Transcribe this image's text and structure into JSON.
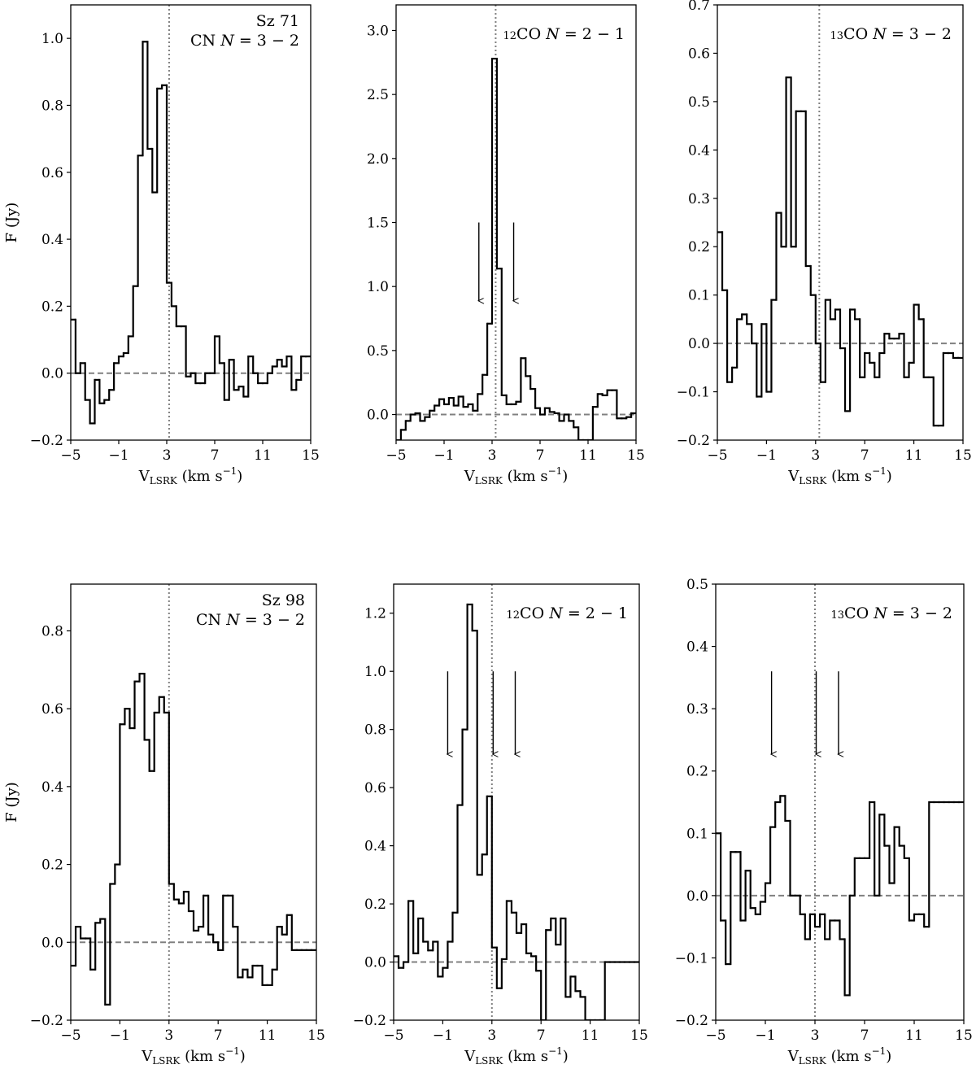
{
  "chart_data": [
    {
      "type": "line",
      "drawstyle": "steps-mid",
      "source_label": "Sz 71",
      "line_label": "CN $N=3-2$",
      "ylabel": "F (Jy)",
      "xlabel_main": "V",
      "xlabel_sub": "LSRK",
      "xlabel_units": " (km s",
      "xlabel_exp": "−1",
      "xlabel_close": ")",
      "xlim": [
        -5,
        15
      ],
      "ylim": [
        -0.2,
        1.1
      ],
      "xticks": [
        -5,
        -1,
        3,
        7,
        11,
        15
      ],
      "xtick_labels": [
        "−5",
        "−1",
        "3",
        "7",
        "11",
        "15"
      ],
      "yticks": [
        -0.2,
        0.0,
        0.2,
        0.4,
        0.6,
        0.8,
        1.0
      ],
      "ytick_labels": [
        "−0.2",
        "0.0",
        "0.2",
        "0.4",
        "0.6",
        "0.8",
        "1.0"
      ],
      "systemic_velocity": 3.2,
      "arrows": [],
      "x": [
        -4.8,
        -4.4,
        -4.0,
        -3.6,
        -3.2,
        -2.8,
        -2.4,
        -2.0,
        -1.6,
        -1.2,
        -0.8,
        -0.4,
        0.0,
        0.4,
        0.8,
        1.2,
        1.6,
        2.0,
        2.4,
        2.8,
        3.2,
        3.6,
        4.0,
        4.4,
        4.8,
        5.2,
        5.6,
        6.0,
        6.4,
        6.8,
        7.2,
        7.6,
        8.0,
        8.4,
        8.8,
        9.2,
        9.6,
        10.0,
        10.4,
        10.8,
        11.2,
        11.6,
        12.0,
        12.4,
        12.8,
        13.2,
        13.6,
        14.0,
        14.4,
        14.8
      ],
      "y": [
        0.16,
        0.0,
        0.03,
        -0.08,
        -0.15,
        -0.02,
        -0.09,
        -0.08,
        -0.05,
        0.03,
        0.05,
        0.06,
        0.11,
        0.26,
        0.65,
        0.99,
        0.67,
        0.54,
        0.85,
        0.86,
        0.27,
        0.2,
        0.14,
        0.14,
        -0.01,
        0.0,
        -0.03,
        -0.03,
        0.0,
        0.0,
        0.11,
        0.03,
        -0.08,
        0.04,
        -0.05,
        -0.04,
        -0.07,
        0.05,
        0.0,
        -0.03,
        -0.03,
        0.0,
        0.02,
        0.04,
        0.02,
        0.05,
        -0.05,
        -0.02,
        0.05,
        0.05
      ]
    },
    {
      "type": "line",
      "drawstyle": "steps-mid",
      "source_label": "",
      "line_label": "$^{12}$CO $N=2-1$",
      "ylabel": "",
      "xlabel_main": "V",
      "xlabel_sub": "LSRK",
      "xlabel_units": " (km s",
      "xlabel_exp": "−1",
      "xlabel_close": ")",
      "xlim": [
        -5,
        15
      ],
      "ylim": [
        -0.2,
        3.2
      ],
      "xticks": [
        -5,
        -1,
        3,
        7,
        11,
        15
      ],
      "xtick_labels": [
        "−5",
        "−1",
        "3",
        "7",
        "11",
        "15"
      ],
      "yticks": [
        0.0,
        0.5,
        1.0,
        1.5,
        2.0,
        2.5,
        3.0
      ],
      "ytick_labels": [
        "0.0",
        "0.5",
        "1.0",
        "1.5",
        "2.0",
        "2.5",
        "3.0"
      ],
      "systemic_velocity": 3.3,
      "arrows": [
        1.9,
        4.8
      ],
      "x": [
        -4.8,
        -4.4,
        -4.0,
        -3.6,
        -3.2,
        -2.8,
        -2.4,
        -2.0,
        -1.6,
        -1.2,
        -0.8,
        -0.4,
        0.0,
        0.4,
        0.8,
        1.2,
        1.6,
        2.0,
        2.4,
        2.8,
        3.2,
        3.6,
        4.0,
        4.4,
        4.8,
        5.2,
        5.6,
        6.0,
        6.4,
        6.8,
        7.2,
        7.6,
        8.0,
        8.4,
        8.8,
        9.2,
        9.6,
        10.0,
        10.4,
        10.8,
        11.2,
        11.6,
        12.0,
        12.4,
        12.8,
        13.2,
        13.6,
        14.0,
        14.4,
        14.8
      ],
      "y": [
        -0.2,
        -0.12,
        -0.05,
        0.0,
        0.01,
        -0.05,
        -0.02,
        0.03,
        0.07,
        0.12,
        0.08,
        0.13,
        0.07,
        0.14,
        0.06,
        0.08,
        0.03,
        0.16,
        0.31,
        0.71,
        2.78,
        1.14,
        0.15,
        0.08,
        0.08,
        0.1,
        0.44,
        0.3,
        0.2,
        0.05,
        0.0,
        0.05,
        0.02,
        0.01,
        -0.05,
        0.0,
        -0.05,
        -0.1,
        -0.2,
        -0.2,
        -0.2,
        0.06,
        0.16,
        0.15,
        0.19,
        0.19,
        -0.03,
        -0.03,
        -0.02,
        0.01
      ]
    },
    {
      "type": "line",
      "drawstyle": "steps-mid",
      "source_label": "",
      "line_label": "$^{13}$CO $N=3-2$",
      "ylabel": "",
      "xlabel_main": "V",
      "xlabel_sub": "LSRK",
      "xlabel_units": " (km s",
      "xlabel_exp": "−1",
      "xlabel_close": ")",
      "xlim": [
        -5,
        15
      ],
      "ylim": [
        -0.2,
        0.7
      ],
      "xticks": [
        -5,
        -1,
        3,
        7,
        11,
        15
      ],
      "xtick_labels": [
        "−5",
        "−1",
        "3",
        "7",
        "11",
        "15"
      ],
      "yticks": [
        -0.2,
        -0.1,
        0.0,
        0.1,
        0.2,
        0.3,
        0.4,
        0.5,
        0.6,
        0.7
      ],
      "ytick_labels": [
        "−0.2",
        "−0.1",
        "0.0",
        "0.1",
        "0.2",
        "0.3",
        "0.4",
        "0.5",
        "0.6",
        "0.7"
      ],
      "systemic_velocity": 3.3,
      "arrows": [],
      "x": [
        -4.8,
        -4.4,
        -4.0,
        -3.6,
        -3.2,
        -2.8,
        -2.4,
        -2.0,
        -1.6,
        -1.2,
        -0.8,
        -0.4,
        0.0,
        0.4,
        0.8,
        1.2,
        1.6,
        2.0,
        2.4,
        2.8,
        3.2,
        3.6,
        4.0,
        4.4,
        4.8,
        5.2,
        5.6,
        6.0,
        6.4,
        6.8,
        7.2,
        7.6,
        8.0,
        8.4,
        8.8,
        9.2,
        9.6,
        10.0,
        10.4,
        10.8,
        11.2,
        11.6,
        12.0,
        12.4,
        12.8,
        13.2,
        13.6,
        14.0,
        14.4,
        14.8
      ],
      "y": [
        0.23,
        0.11,
        -0.08,
        -0.05,
        0.05,
        0.06,
        0.04,
        0.0,
        -0.11,
        0.04,
        -0.1,
        0.09,
        0.27,
        0.2,
        0.55,
        0.2,
        0.48,
        0.48,
        0.16,
        0.1,
        0.0,
        -0.08,
        0.09,
        0.05,
        0.07,
        -0.01,
        -0.14,
        0.07,
        0.05,
        -0.07,
        -0.02,
        -0.04,
        -0.07,
        -0.02,
        0.02,
        0.01,
        0.01,
        0.02,
        -0.07,
        -0.04,
        0.08,
        0.05,
        -0.07,
        -0.07,
        -0.17,
        -0.17,
        -0.02,
        -0.02,
        -0.03,
        -0.03
      ]
    },
    {
      "type": "line",
      "drawstyle": "steps-mid",
      "source_label": "Sz 98",
      "line_label": "CN $N=3-2$",
      "ylabel": "F (Jy)",
      "xlabel_main": "V",
      "xlabel_sub": "LSRK",
      "xlabel_units": " (km s",
      "xlabel_exp": "−1",
      "xlabel_close": ")",
      "xlim": [
        -5,
        15
      ],
      "ylim": [
        -0.2,
        0.92
      ],
      "xticks": [
        -5,
        -1,
        3,
        7,
        11,
        15
      ],
      "xtick_labels": [
        "−5",
        "−1",
        "3",
        "7",
        "11",
        "15"
      ],
      "yticks": [
        -0.2,
        0.0,
        0.2,
        0.4,
        0.6,
        0.8
      ],
      "ytick_labels": [
        "−0.2",
        "0.0",
        "0.2",
        "0.4",
        "0.6",
        "0.8"
      ],
      "systemic_velocity": 3.0,
      "arrows": [],
      "x": [
        -4.8,
        -4.4,
        -4.0,
        -3.6,
        -3.2,
        -2.8,
        -2.4,
        -2.0,
        -1.6,
        -1.2,
        -0.8,
        -0.4,
        0.0,
        0.4,
        0.8,
        1.2,
        1.6,
        2.0,
        2.4,
        2.8,
        3.2,
        3.6,
        4.0,
        4.4,
        4.8,
        5.2,
        5.6,
        6.0,
        6.4,
        6.8,
        7.2,
        7.6,
        8.0,
        8.4,
        8.8,
        9.2,
        9.6,
        10.0,
        10.4,
        10.8,
        11.2,
        11.6,
        12.0,
        12.4,
        12.8,
        13.2,
        13.6,
        14.0,
        14.4,
        14.8
      ],
      "y": [
        -0.06,
        0.04,
        0.01,
        0.01,
        -0.07,
        0.05,
        0.06,
        -0.16,
        0.15,
        0.2,
        0.56,
        0.6,
        0.55,
        0.67,
        0.69,
        0.52,
        0.44,
        0.59,
        0.63,
        0.59,
        0.15,
        0.11,
        0.1,
        0.13,
        0.08,
        0.03,
        0.04,
        0.12,
        0.02,
        0.0,
        -0.02,
        0.12,
        0.12,
        0.04,
        -0.09,
        -0.07,
        -0.09,
        -0.06,
        -0.06,
        -0.11,
        -0.11,
        -0.07,
        0.04,
        0.02,
        0.07,
        -0.02,
        -0.02,
        -0.02,
        -0.02,
        -0.02
      ]
    },
    {
      "type": "line",
      "drawstyle": "steps-mid",
      "source_label": "",
      "line_label": "$^{12}$CO $N=2-1$",
      "ylabel": "",
      "xlabel_main": "V",
      "xlabel_sub": "LSRK",
      "xlabel_units": " (km s",
      "xlabel_exp": "−1",
      "xlabel_close": ")",
      "xlim": [
        -5,
        15
      ],
      "ylim": [
        -0.2,
        1.3
      ],
      "xticks": [
        -5,
        -1,
        3,
        7,
        11,
        15
      ],
      "xtick_labels": [
        "−5",
        "−1",
        "3",
        "7",
        "11",
        "15"
      ],
      "yticks": [
        -0.2,
        0.0,
        0.2,
        0.4,
        0.6,
        0.8,
        1.0,
        1.2
      ],
      "ytick_labels": [
        "−0.2",
        "0.0",
        "0.2",
        "0.4",
        "0.6",
        "0.8",
        "1.0",
        "1.2"
      ],
      "systemic_velocity": 3.0,
      "arrows": [
        -0.6,
        3.1,
        4.9
      ],
      "x": [
        -4.8,
        -4.4,
        -4.0,
        -3.6,
        -3.2,
        -2.8,
        -2.4,
        -2.0,
        -1.6,
        -1.2,
        -0.8,
        -0.4,
        0.0,
        0.4,
        0.8,
        1.2,
        1.6,
        2.0,
        2.4,
        2.8,
        3.2,
        3.6,
        4.0,
        4.4,
        4.8,
        5.2,
        5.6,
        6.0,
        6.4,
        6.8,
        7.2,
        7.6,
        8.0,
        8.4,
        8.8,
        9.2,
        9.6,
        10.0,
        10.4,
        10.8,
        11.2,
        11.6,
        12.0,
        12.4,
        12.8,
        13.2,
        13.6,
        14.0,
        14.4,
        14.8
      ],
      "y": [
        0.02,
        -0.02,
        0.0,
        0.21,
        0.03,
        0.15,
        0.07,
        0.04,
        0.07,
        -0.05,
        -0.02,
        0.07,
        0.17,
        0.54,
        0.8,
        1.23,
        1.14,
        0.3,
        0.37,
        0.57,
        0.05,
        -0.09,
        0.01,
        0.21,
        0.17,
        0.1,
        0.13,
        0.03,
        0.02,
        -0.03,
        -0.2,
        0.11,
        0.15,
        0.06,
        0.15,
        -0.12,
        -0.05,
        -0.1,
        -0.12,
        -0.2,
        -0.2,
        -0.2,
        -0.2,
        0.0,
        0.0,
        0.0,
        0.0,
        0.0,
        0.0,
        0.0
      ]
    },
    {
      "type": "line",
      "drawstyle": "steps-mid",
      "source_label": "",
      "line_label": "$^{13}$CO $N=3-2$",
      "ylabel": "",
      "xlabel_main": "V",
      "xlabel_sub": "LSRK",
      "xlabel_units": " (km s",
      "xlabel_exp": "−1",
      "xlabel_close": ")",
      "xlim": [
        -5,
        15
      ],
      "ylim": [
        -0.2,
        0.5
      ],
      "xticks": [
        -5,
        -1,
        3,
        7,
        11,
        15
      ],
      "xtick_labels": [
        "−5",
        "−1",
        "3",
        "7",
        "11",
        "15"
      ],
      "yticks": [
        -0.2,
        -0.1,
        0.0,
        0.1,
        0.2,
        0.3,
        0.4,
        0.5
      ],
      "ytick_labels": [
        "−0.2",
        "−0.1",
        "0.0",
        "0.1",
        "0.2",
        "0.3",
        "0.4",
        "0.5"
      ],
      "systemic_velocity": 3.0,
      "arrows": [
        -0.5,
        3.1,
        4.9
      ],
      "x": [
        -4.8,
        -4.4,
        -4.0,
        -3.6,
        -3.2,
        -2.8,
        -2.4,
        -2.0,
        -1.6,
        -1.2,
        -0.8,
        -0.4,
        0.0,
        0.4,
        0.8,
        1.2,
        1.6,
        2.0,
        2.4,
        2.8,
        3.2,
        3.6,
        4.0,
        4.4,
        4.8,
        5.2,
        5.6,
        6.0,
        6.4,
        6.8,
        7.2,
        7.6,
        8.0,
        8.4,
        8.8,
        9.2,
        9.6,
        10.0,
        10.4,
        10.8,
        11.2,
        11.6,
        12.0,
        12.4,
        12.8,
        13.2,
        13.6,
        14.0,
        14.4,
        14.8
      ],
      "y": [
        0.1,
        -0.04,
        -0.11,
        0.07,
        0.07,
        -0.04,
        0.04,
        -0.02,
        -0.03,
        -0.01,
        0.02,
        0.11,
        0.15,
        0.16,
        0.12,
        0.0,
        0.0,
        -0.03,
        -0.07,
        -0.03,
        -0.05,
        -0.03,
        -0.07,
        -0.04,
        -0.04,
        -0.07,
        -0.16,
        0.0,
        0.06,
        0.06,
        0.06,
        0.15,
        0.0,
        0.13,
        0.08,
        0.02,
        0.11,
        0.08,
        0.06,
        -0.04,
        -0.03,
        -0.03,
        -0.05,
        0.15,
        0.15,
        0.15,
        0.15,
        0.15,
        0.15,
        0.15
      ]
    }
  ]
}
